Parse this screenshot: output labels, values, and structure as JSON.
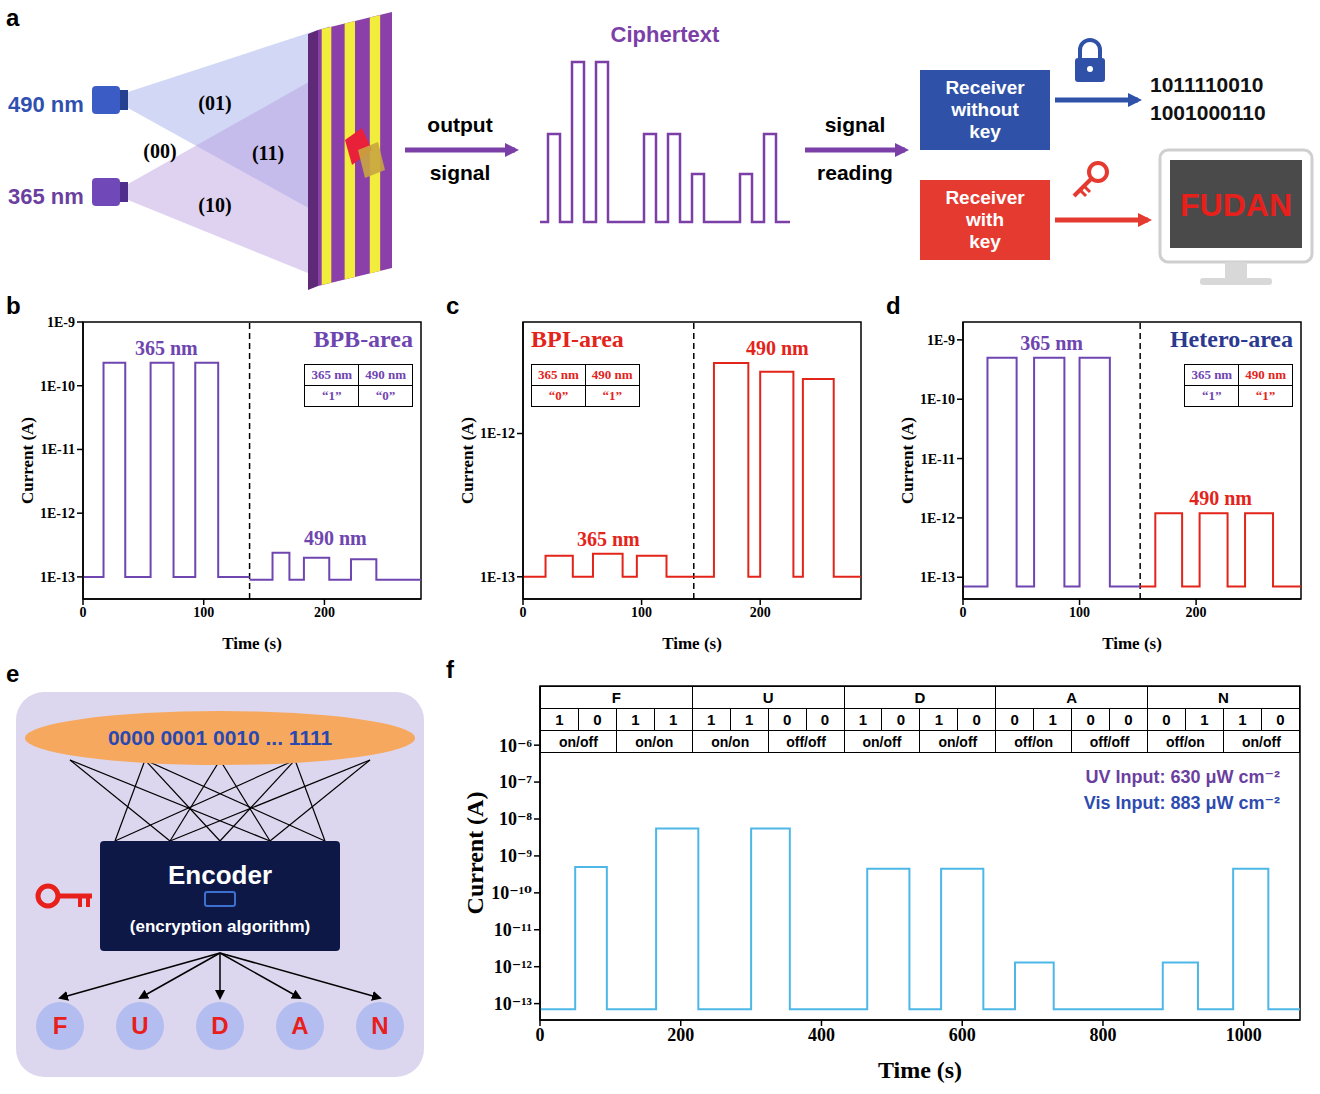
{
  "diagram_a": {
    "panel": "a",
    "sources": [
      "490 nm",
      "365 nm"
    ],
    "states": [
      "(01)",
      "(00)",
      "(11)",
      "(10)"
    ],
    "arrow_1": "output signal",
    "ciphertext": "Ciphertext",
    "arrow_2": "signal reading",
    "receiver_without_key": "Receiver without key",
    "output_without_key": [
      "1011110010",
      "1001000110"
    ],
    "receiver_with_key": "Receiver with key",
    "output_with_key": "FUDAN"
  },
  "chart_data": [
    {
      "panel": "b",
      "type": "line",
      "title": "BPB-area",
      "x_label": "Time (s)",
      "y_label": "Current (A)",
      "log": "y",
      "xlim": [
        0,
        280
      ],
      "xticks": [
        0,
        100,
        200
      ],
      "ylim": [
        4.5e-14,
        1e-09
      ],
      "yticks": [
        {
          "value": 1e-13,
          "label": "1E-13"
        },
        {
          "value": 1e-12,
          "label": "1E-12"
        },
        {
          "value": 1e-11,
          "label": "1E-11"
        },
        {
          "value": 1e-10,
          "label": "1E-10"
        },
        {
          "value": 1e-09,
          "label": "1E-9"
        }
      ],
      "divider_x": 138,
      "table": {
        "header": [
          "365 nm",
          "490 nm"
        ],
        "row": [
          "“1”",
          "“0”"
        ]
      },
      "series": [
        {
          "name": "365 nm",
          "color": "#6f45b0",
          "x": [
            0,
            17,
            17,
            35,
            35,
            56,
            56,
            75,
            75,
            93,
            93,
            112,
            112,
            138
          ],
          "values": [
            1e-13,
            1e-13,
            2.3e-10,
            2.3e-10,
            1e-13,
            1e-13,
            2.3e-10,
            2.3e-10,
            1e-13,
            1e-13,
            2.3e-10,
            2.3e-10,
            1e-13,
            1e-13
          ]
        },
        {
          "name": "490 nm",
          "color": "#6f45b0",
          "x": [
            138,
            157,
            157,
            171,
            171,
            183,
            183,
            204,
            204,
            222,
            222,
            243,
            243,
            280
          ],
          "values": [
            9e-14,
            9e-14,
            2.4e-13,
            2.4e-13,
            9e-14,
            9e-14,
            2e-13,
            2e-13,
            9e-14,
            9e-14,
            1.9e-13,
            1.9e-13,
            9e-14,
            9e-14
          ]
        }
      ]
    },
    {
      "panel": "c",
      "type": "line",
      "title": "BPI-area",
      "x_label": "Time (s)",
      "y_label": "Current (A)",
      "log": "y",
      "xlim": [
        0,
        285
      ],
      "xticks": [
        0,
        100,
        200
      ],
      "ylim": [
        7e-14,
        6e-12
      ],
      "yticks": [
        {
          "value": 1e-13,
          "label": "1E-13"
        },
        {
          "value": 1e-12,
          "label": "1E-12"
        }
      ],
      "divider_x": 144,
      "table": {
        "header": [
          "365 nm",
          "490 nm"
        ],
        "row": [
          "“0”",
          "“1”"
        ]
      },
      "series": [
        {
          "name": "365 nm",
          "color": "#e3241b",
          "x": [
            0,
            19,
            19,
            42,
            42,
            59,
            59,
            84,
            84,
            96,
            96,
            121,
            121,
            144
          ],
          "values": [
            1e-13,
            1e-13,
            1.4e-13,
            1.4e-13,
            1e-13,
            1e-13,
            1.45e-13,
            1.45e-13,
            1e-13,
            1e-13,
            1.4e-13,
            1.4e-13,
            1e-13,
            1e-13
          ]
        },
        {
          "name": "490 nm",
          "color": "#e3241b",
          "x": [
            144,
            161,
            161,
            190,
            190,
            200,
            200,
            228,
            228,
            236,
            236,
            262,
            262,
            285
          ],
          "values": [
            1e-13,
            1e-13,
            3.1e-12,
            3.1e-12,
            1e-13,
            1e-13,
            2.7e-12,
            2.7e-12,
            1e-13,
            1e-13,
            2.4e-12,
            2.4e-12,
            1e-13,
            1e-13
          ]
        }
      ]
    },
    {
      "panel": "d",
      "type": "line",
      "title": "Hetero-area",
      "x_label": "Time (s)",
      "y_label": "Current (A)",
      "log": "y",
      "xlim": [
        0,
        290
      ],
      "xticks": [
        0,
        100,
        200
      ],
      "ylim": [
        4.3e-14,
        2e-09
      ],
      "yticks": [
        {
          "value": 1e-13,
          "label": "1E-13"
        },
        {
          "value": 1e-12,
          "label": "1E-12"
        },
        {
          "value": 1e-11,
          "label": "1E-11"
        },
        {
          "value": 1e-10,
          "label": "1E-10"
        },
        {
          "value": 1e-09,
          "label": "1E-9"
        }
      ],
      "divider_x": 152,
      "table": {
        "header": [
          "365 nm",
          "490 nm"
        ],
        "row": [
          "“1”",
          "“1”"
        ]
      },
      "series": [
        {
          "name": "365 nm",
          "color": "#6f45b0",
          "x": [
            0,
            21,
            21,
            46,
            46,
            61,
            61,
            87,
            87,
            100,
            100,
            126,
            126,
            152
          ],
          "values": [
            7e-14,
            7e-14,
            5e-10,
            5e-10,
            7e-14,
            7e-14,
            5e-10,
            5e-10,
            7e-14,
            7e-14,
            5e-10,
            5e-10,
            7e-14,
            7e-14
          ]
        },
        {
          "name": "490 nm",
          "color": "#e3241b",
          "x": [
            152,
            165,
            165,
            188,
            188,
            203,
            203,
            227,
            227,
            242,
            242,
            266,
            266,
            290
          ],
          "values": [
            7e-14,
            7e-14,
            1.2e-12,
            1.2e-12,
            7e-14,
            7e-14,
            1.2e-12,
            1.2e-12,
            7e-14,
            7e-14,
            1.2e-12,
            1.2e-12,
            7e-14,
            7e-14
          ]
        }
      ]
    },
    {
      "panel": "f",
      "type": "line",
      "x_label": "Time (s)",
      "y_label": "Current (A)",
      "log": "y",
      "xlim": [
        0,
        1080
      ],
      "xticks": [
        0,
        200,
        400,
        600,
        800,
        1000
      ],
      "ylim": [
        3.6e-14,
        4e-05
      ],
      "yticks": [
        {
          "value": 1e-13,
          "label": "10⁻¹³"
        },
        {
          "value": 1e-12,
          "label": "10⁻¹²"
        },
        {
          "value": 1e-11,
          "label": "10⁻¹¹"
        },
        {
          "value": 1e-10,
          "label": "10⁻¹⁰"
        },
        {
          "value": 1e-09,
          "label": "10⁻⁹"
        },
        {
          "value": 1e-08,
          "label": "10⁻⁸"
        },
        {
          "value": 1e-07,
          "label": "10⁻⁷"
        },
        {
          "value": 1e-06,
          "label": "10⁻⁶"
        }
      ],
      "color": "#4db8e8",
      "table": {
        "letters": [
          "F",
          "U",
          "D",
          "A",
          "N"
        ],
        "bits": [
          [
            1,
            0,
            1,
            1
          ],
          [
            1,
            1,
            0,
            0
          ],
          [
            1,
            0,
            1,
            0
          ],
          [
            0,
            1,
            0,
            0
          ],
          [
            0,
            1,
            1,
            0
          ]
        ],
        "states": [
          [
            "on/off",
            "on/on"
          ],
          [
            "on/on",
            "off/off"
          ],
          [
            "on/off",
            "on/off"
          ],
          [
            "off/on",
            "off/off"
          ],
          [
            "off/on",
            "on/off"
          ]
        ]
      },
      "annotations": [
        "UV Input: 630 μW cm⁻²",
        "Vis Input: 883 μW cm⁻²"
      ],
      "x": [
        0,
        50,
        50,
        95,
        95,
        165,
        165,
        225,
        225,
        300,
        300,
        355,
        355,
        465,
        465,
        525,
        525,
        570,
        570,
        630,
        630,
        675,
        675,
        730,
        730,
        885,
        885,
        935,
        935,
        985,
        985,
        1035,
        1035,
        1080
      ],
      "values": [
        7e-14,
        7e-14,
        5e-10,
        5e-10,
        7e-14,
        7e-14,
        5.5e-09,
        5.5e-09,
        7e-14,
        7e-14,
        5.5e-09,
        5.5e-09,
        7e-14,
        7e-14,
        4.5e-10,
        4.5e-10,
        7e-14,
        7e-14,
        4.5e-10,
        4.5e-10,
        7e-14,
        7e-14,
        1.3e-12,
        1.3e-12,
        7e-14,
        7e-14,
        1.3e-12,
        1.3e-12,
        7e-14,
        7e-14,
        4.5e-10,
        4.5e-10,
        7e-14,
        7e-14
      ]
    }
  ],
  "diagram_e": {
    "panel": "e",
    "inputs": "0000 0001 0010 ... 1111",
    "encoder": "Encoder",
    "algorithm": "(encryption algorithm)",
    "outputs": [
      "F",
      "U",
      "D",
      "A",
      "N"
    ]
  }
}
